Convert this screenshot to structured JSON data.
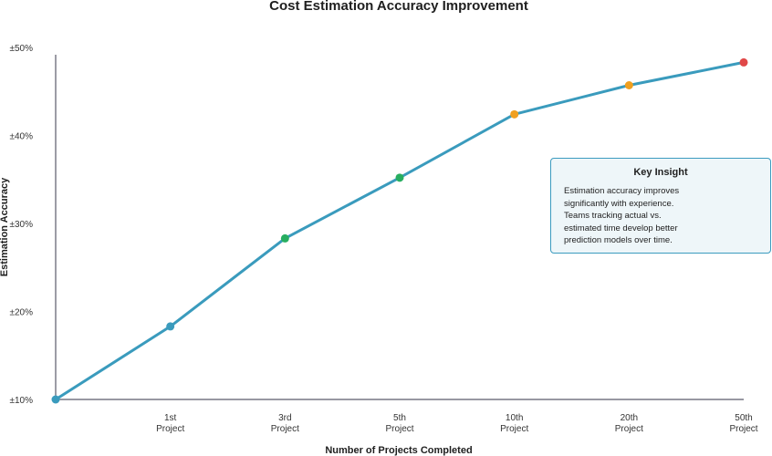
{
  "chart_data": {
    "type": "line",
    "title": "Cost Estimation Accuracy Improvement",
    "xlabel": "Number of Projects Completed",
    "ylabel": "Estimation Accuracy",
    "y_ticks": [
      "±10%",
      "±20%",
      "±30%",
      "±40%",
      "±50%"
    ],
    "y_tick_values": [
      10,
      20,
      30,
      40,
      50
    ],
    "ylim": [
      10,
      50
    ],
    "categories": [
      [
        "1st",
        "Project"
      ],
      [
        "3rd",
        "Project"
      ],
      [
        "5th",
        "Project"
      ],
      [
        "10th",
        "Project"
      ],
      [
        "20th",
        "Project"
      ],
      [
        "50th",
        "Project"
      ]
    ],
    "series": [
      {
        "x": [
          0,
          1,
          3,
          5,
          10,
          20,
          50
        ],
        "values": [
          10.0,
          18.3,
          28.3,
          35.2,
          42.4,
          45.7,
          48.3
        ],
        "line_color": "#3a9bbd",
        "point_colors": [
          "#3a9bbd",
          "#3a9bbd",
          "#27ae60",
          "#27ae60",
          "#f0a020",
          "#f0a020",
          "#e04848"
        ]
      }
    ],
    "grid": false,
    "annotation": {
      "title": "Key Insight",
      "lines": [
        "Estimation accuracy improves",
        "significantly with experience.",
        "Teams tracking actual vs.",
        "estimated time develop better",
        "prediction models over time."
      ]
    }
  }
}
